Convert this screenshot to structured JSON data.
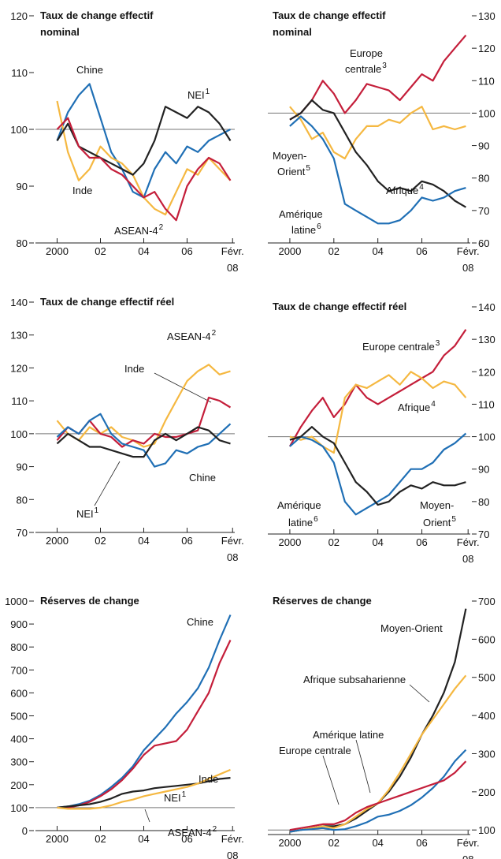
{
  "chart_data": [
    {
      "type": "line",
      "title_lines": [
        "Taux de change effectif",
        "nominal"
      ],
      "y_axis_side": "left",
      "refline": 100,
      "x": [
        2000,
        2000.5,
        2001,
        2001.5,
        2002,
        2002.5,
        2003,
        2003.5,
        2004,
        2004.5,
        2005,
        2005.5,
        2006,
        2006.5,
        2007,
        2007.5,
        2008
      ],
      "xlim": [
        1999,
        2008.2
      ],
      "xticks": [
        {
          "value": 2000,
          "label": "2000"
        },
        {
          "value": 2002,
          "label": "02"
        },
        {
          "value": 2004,
          "label": "04"
        },
        {
          "value": 2006,
          "label": "06"
        },
        {
          "value": 2008.1,
          "label": [
            "Févr.",
            "08"
          ]
        }
      ],
      "ylim": [
        80,
        120
      ],
      "yticks": [
        80,
        90,
        100,
        110,
        120
      ],
      "series": [
        {
          "label": [
            "Chine"
          ],
          "color": "#1f6fb5",
          "values": [
            98,
            103,
            106,
            108,
            102,
            96,
            93,
            89,
            88,
            93,
            96,
            94,
            97,
            96,
            98,
            99,
            100
          ]
        },
        {
          "label": [
            "Inde"
          ],
          "color": "#f5b841",
          "values": [
            105,
            96,
            91,
            93,
            97,
            95,
            94,
            92,
            88,
            86,
            85,
            89,
            93,
            92,
            95,
            93,
            91
          ]
        },
        {
          "label": [
            "NEI"
          ],
          "note": "1",
          "color": "#222222",
          "values": [
            98,
            101,
            97,
            96,
            95,
            94,
            93,
            92,
            94,
            98,
            104,
            103,
            102,
            104,
            103,
            101,
            98
          ]
        },
        {
          "label": [
            "ASEAN-4"
          ],
          "note": "2",
          "color": "#c41e3a",
          "values": [
            100,
            102,
            97,
            95,
            95,
            93,
            92,
            90,
            88,
            89,
            86,
            84,
            90,
            93,
            95,
            94,
            91
          ]
        }
      ]
    },
    {
      "type": "line",
      "title_lines": [
        "Taux de change effectif",
        "nominal"
      ],
      "y_axis_side": "right",
      "refline": 100,
      "x": [
        2000,
        2000.5,
        2001,
        2001.5,
        2002,
        2002.5,
        2003,
        2003.5,
        2004,
        2004.5,
        2005,
        2005.5,
        2006,
        2006.5,
        2007,
        2007.5,
        2008
      ],
      "xlim": [
        1999,
        2008.2
      ],
      "xticks": [
        {
          "value": 2000,
          "label": "2000"
        },
        {
          "value": 2002,
          "label": "02"
        },
        {
          "value": 2004,
          "label": "04"
        },
        {
          "value": 2006,
          "label": "06"
        },
        {
          "value": 2008.1,
          "label": [
            "Févr.",
            "08"
          ]
        }
      ],
      "ylim": [
        60,
        130
      ],
      "yticks": [
        60,
        70,
        80,
        90,
        100,
        110,
        120,
        130
      ],
      "series": [
        {
          "label": [
            "Europe",
            "centrale"
          ],
          "note": "3",
          "color": "#c41e3a",
          "values": [
            98,
            100,
            104,
            110,
            106,
            100,
            104,
            109,
            108,
            107,
            104,
            108,
            112,
            110,
            116,
            120,
            124
          ]
        },
        {
          "label": [
            "Afrique"
          ],
          "note": "4",
          "color": "#f5b841",
          "values": [
            102,
            98,
            92,
            94,
            88,
            86,
            92,
            96,
            96,
            98,
            97,
            100,
            102,
            95,
            96,
            95,
            96
          ]
        },
        {
          "label": [
            "Moyen-",
            "Orient"
          ],
          "note": "5",
          "color": "#222222",
          "values": [
            98,
            100,
            104,
            101,
            100,
            94,
            88,
            84,
            79,
            76,
            77,
            76,
            79,
            78,
            76,
            73,
            71
          ]
        },
        {
          "label": [
            "Amérique",
            "latine"
          ],
          "note": "6",
          "color": "#1f6fb5",
          "values": [
            96,
            99,
            96,
            92,
            86,
            72,
            70,
            68,
            66,
            66,
            67,
            70,
            74,
            73,
            74,
            76,
            77
          ]
        }
      ]
    },
    {
      "type": "line",
      "title_lines": [
        "Taux de change effectif réel"
      ],
      "y_axis_side": "left",
      "refline": 100,
      "x": [
        2000,
        2000.5,
        2001,
        2001.5,
        2002,
        2002.5,
        2003,
        2003.5,
        2004,
        2004.5,
        2005,
        2005.5,
        2006,
        2006.5,
        2007,
        2007.5,
        2008
      ],
      "xlim": [
        1999,
        2008.2
      ],
      "xticks": [
        {
          "value": 2000,
          "label": "2000"
        },
        {
          "value": 2002,
          "label": "02"
        },
        {
          "value": 2004,
          "label": "04"
        },
        {
          "value": 2006,
          "label": "06"
        },
        {
          "value": 2008.1,
          "label": [
            "Févr.",
            "08"
          ]
        }
      ],
      "ylim": [
        70,
        140
      ],
      "yticks": [
        70,
        80,
        90,
        100,
        110,
        120,
        130,
        140
      ],
      "series": [
        {
          "label": [
            "ASEAN-4"
          ],
          "note": "2",
          "color": "#f5b841",
          "values": [
            104,
            100,
            98,
            102,
            100,
            102,
            99,
            98,
            96,
            97,
            104,
            110,
            116,
            119,
            121,
            118,
            119
          ]
        },
        {
          "label": [
            "Inde"
          ],
          "color": "#c41e3a",
          "values": [
            98,
            102,
            100,
            104,
            100,
            99,
            96,
            98,
            97,
            100,
            99,
            99,
            100,
            101,
            111,
            110,
            108
          ]
        },
        {
          "label": [
            "Chine"
          ],
          "color": "#1f6fb5",
          "values": [
            99,
            102,
            100,
            104,
            106,
            100,
            97,
            96,
            95,
            90,
            91,
            95,
            94,
            96,
            97,
            100,
            103
          ]
        },
        {
          "label": [
            "NEI"
          ],
          "note": "1",
          "color": "#222222",
          "values": [
            97,
            100,
            98,
            96,
            96,
            95,
            94,
            93,
            93,
            98,
            100,
            98,
            100,
            102,
            101,
            98,
            97
          ]
        }
      ]
    },
    {
      "type": "line",
      "title_lines": [
        "Taux de change effectif réel"
      ],
      "y_axis_side": "right",
      "refline": 100,
      "x": [
        2000,
        2000.5,
        2001,
        2001.5,
        2002,
        2002.5,
        2003,
        2003.5,
        2004,
        2004.5,
        2005,
        2005.5,
        2006,
        2006.5,
        2007,
        2007.5,
        2008
      ],
      "xlim": [
        1999,
        2008.2
      ],
      "xticks": [
        {
          "value": 2000,
          "label": "2000"
        },
        {
          "value": 2002,
          "label": "02"
        },
        {
          "value": 2004,
          "label": "04"
        },
        {
          "value": 2006,
          "label": "06"
        },
        {
          "value": 2008.1,
          "label": [
            "Févr.",
            "08"
          ]
        }
      ],
      "ylim": [
        70,
        140
      ],
      "yticks": [
        70,
        80,
        90,
        100,
        110,
        120,
        130,
        140
      ],
      "series": [
        {
          "label": [
            "Europe centrale"
          ],
          "note": "3",
          "color": "#c41e3a",
          "values": [
            97,
            103,
            108,
            112,
            106,
            110,
            116,
            112,
            110,
            112,
            114,
            116,
            118,
            120,
            125,
            128,
            133
          ]
        },
        {
          "label": [
            "Afrique"
          ],
          "note": "4",
          "color": "#f5b841",
          "values": [
            100,
            99,
            100,
            97,
            95,
            112,
            116,
            115,
            117,
            119,
            116,
            120,
            118,
            115,
            117,
            116,
            112
          ]
        },
        {
          "label": [
            "Amérique",
            "latine"
          ],
          "note": "6",
          "color": "#1f6fb5",
          "values": [
            97,
            100,
            99,
            97,
            92,
            80,
            76,
            78,
            80,
            82,
            86,
            90,
            90,
            92,
            96,
            98,
            101
          ]
        },
        {
          "label": [
            "Moyen-",
            "Orient"
          ],
          "note": "5",
          "color": "#222222",
          "values": [
            99,
            100,
            103,
            100,
            98,
            92,
            86,
            83,
            79,
            80,
            83,
            85,
            84,
            86,
            85,
            85,
            86
          ]
        }
      ]
    },
    {
      "type": "line",
      "title_lines": [
        "Réserves de change"
      ],
      "y_axis_side": "left",
      "refline": 100,
      "x": [
        2000,
        2000.5,
        2001,
        2001.5,
        2002,
        2002.5,
        2003,
        2003.5,
        2004,
        2004.5,
        2005,
        2005.5,
        2006,
        2006.5,
        2007,
        2007.5,
        2008
      ],
      "xlim": [
        1999,
        2008.2
      ],
      "xticks": [
        {
          "value": 2000,
          "label": "2000"
        },
        {
          "value": 2002,
          "label": "02"
        },
        {
          "value": 2004,
          "label": "04"
        },
        {
          "value": 2006,
          "label": "06"
        },
        {
          "value": 2008.1,
          "label": [
            "Févr.",
            "08"
          ]
        }
      ],
      "ylim": [
        0,
        1000
      ],
      "yticks": [
        0,
        100,
        200,
        300,
        400,
        500,
        600,
        700,
        800,
        900,
        1000
      ],
      "series": [
        {
          "label": [
            "Chine"
          ],
          "color": "#1f6fb5",
          "values": [
            100,
            105,
            115,
            130,
            155,
            190,
            230,
            280,
            350,
            400,
            450,
            510,
            560,
            620,
            710,
            830,
            940
          ]
        },
        {
          "label": [
            "Inde"
          ],
          "color": "#c41e3a",
          "values": [
            100,
            100,
            110,
            125,
            150,
            180,
            220,
            270,
            330,
            370,
            380,
            390,
            440,
            520,
            600,
            730,
            830
          ]
        },
        {
          "label": [
            "NEI"
          ],
          "note": "1",
          "color": "#222222",
          "values": [
            100,
            105,
            110,
            115,
            125,
            140,
            160,
            170,
            175,
            185,
            190,
            195,
            200,
            205,
            215,
            225,
            230
          ]
        },
        {
          "label": [
            "ASEAN-4"
          ],
          "note": "2",
          "color": "#f5b841",
          "values": [
            100,
            95,
            95,
            95,
            100,
            110,
            125,
            135,
            150,
            160,
            170,
            180,
            190,
            205,
            225,
            245,
            265
          ]
        }
      ]
    },
    {
      "type": "line",
      "title_lines": [
        "Réserves de change"
      ],
      "y_axis_side": "right",
      "refline": 100,
      "x": [
        2000,
        2000.5,
        2001,
        2001.5,
        2002,
        2002.5,
        2003,
        2003.5,
        2004,
        2004.5,
        2005,
        2005.5,
        2006,
        2006.5,
        2007,
        2007.5,
        2008
      ],
      "xlim": [
        1999,
        2008.2
      ],
      "xticks": [
        {
          "value": 2000,
          "label": "2000"
        },
        {
          "value": 2002,
          "label": "02"
        },
        {
          "value": 2004,
          "label": "04"
        },
        {
          "value": 2006,
          "label": "06"
        },
        {
          "value": 2008.1,
          "label": [
            "Févr.",
            "08"
          ]
        }
      ],
      "ylim": [
        88,
        700
      ],
      "yticks": [
        100,
        200,
        300,
        400,
        500,
        600,
        700
      ],
      "series": [
        {
          "label": [
            "Moyen-Orient"
          ],
          "color": "#222222",
          "values": [
            95,
            100,
            105,
            110,
            110,
            115,
            130,
            150,
            170,
            200,
            240,
            290,
            350,
            400,
            460,
            540,
            680
          ]
        },
        {
          "label": [
            "Afrique subsaharienne"
          ],
          "color": "#f5b841",
          "values": [
            95,
            100,
            105,
            110,
            105,
            115,
            135,
            155,
            170,
            205,
            250,
            300,
            350,
            390,
            430,
            470,
            505
          ]
        },
        {
          "label": [
            "Amérique latine"
          ],
          "color": "#1f6fb5",
          "values": [
            95,
            100,
            102,
            105,
            100,
            102,
            110,
            120,
            135,
            140,
            150,
            165,
            185,
            210,
            240,
            280,
            310
          ]
        },
        {
          "label": [
            "Europe centrale"
          ],
          "color": "#c41e3a",
          "values": [
            100,
            105,
            110,
            115,
            115,
            125,
            145,
            160,
            170,
            180,
            190,
            200,
            210,
            220,
            230,
            250,
            280
          ]
        }
      ]
    }
  ]
}
